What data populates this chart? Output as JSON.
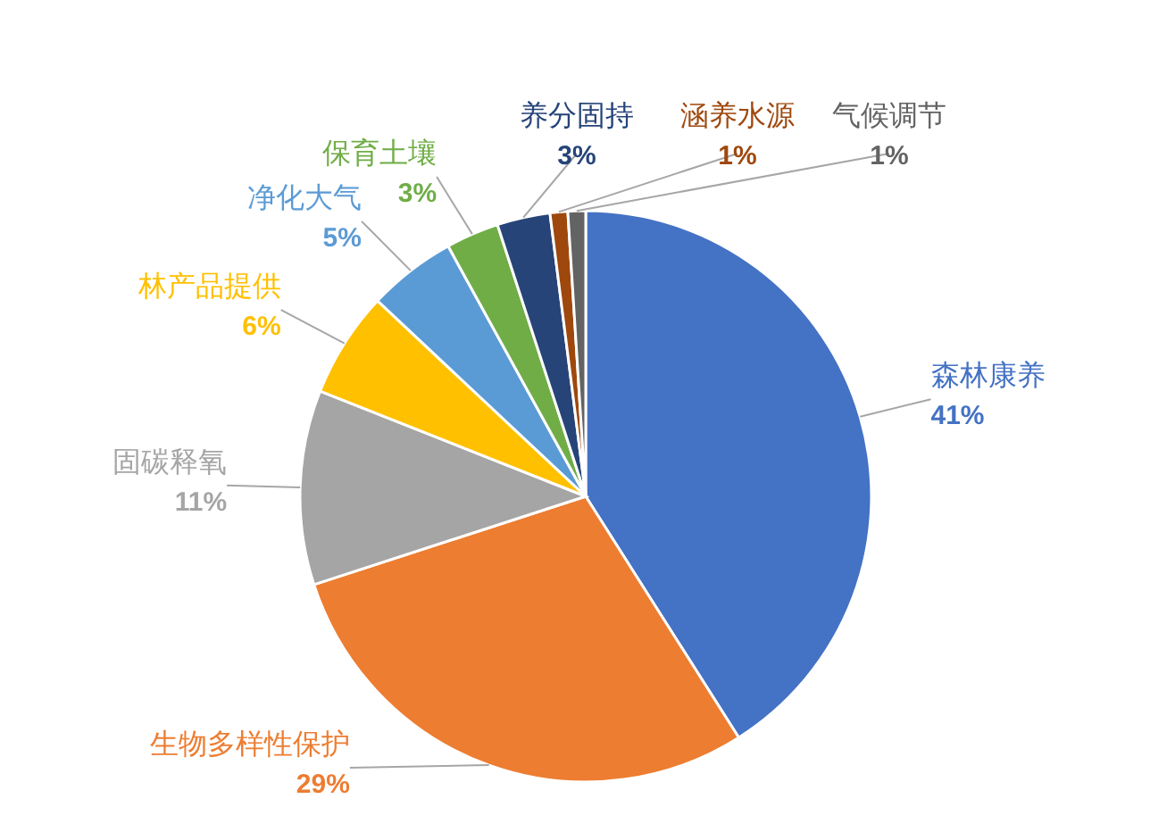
{
  "chart_data": {
    "type": "pie",
    "categories": [
      "森林康养",
      "生物多样性保护",
      "固碳释氧",
      "林产品提供",
      "净化大气",
      "保育土壤",
      "养分固持",
      "涵养水源",
      "气候调节"
    ],
    "values": [
      41,
      29,
      11,
      6,
      5,
      3,
      3,
      1,
      1
    ],
    "colors": [
      "#4472c4",
      "#ed7d31",
      "#a5a5a5",
      "#ffc000",
      "#5b9bd5",
      "#70ad47",
      "#264478",
      "#9e480e",
      "#636363"
    ],
    "value_labels": [
      "41%",
      "29%",
      "11%",
      "6%",
      "5%",
      "3%",
      "3%",
      "1%",
      "1%"
    ],
    "legend": false
  }
}
